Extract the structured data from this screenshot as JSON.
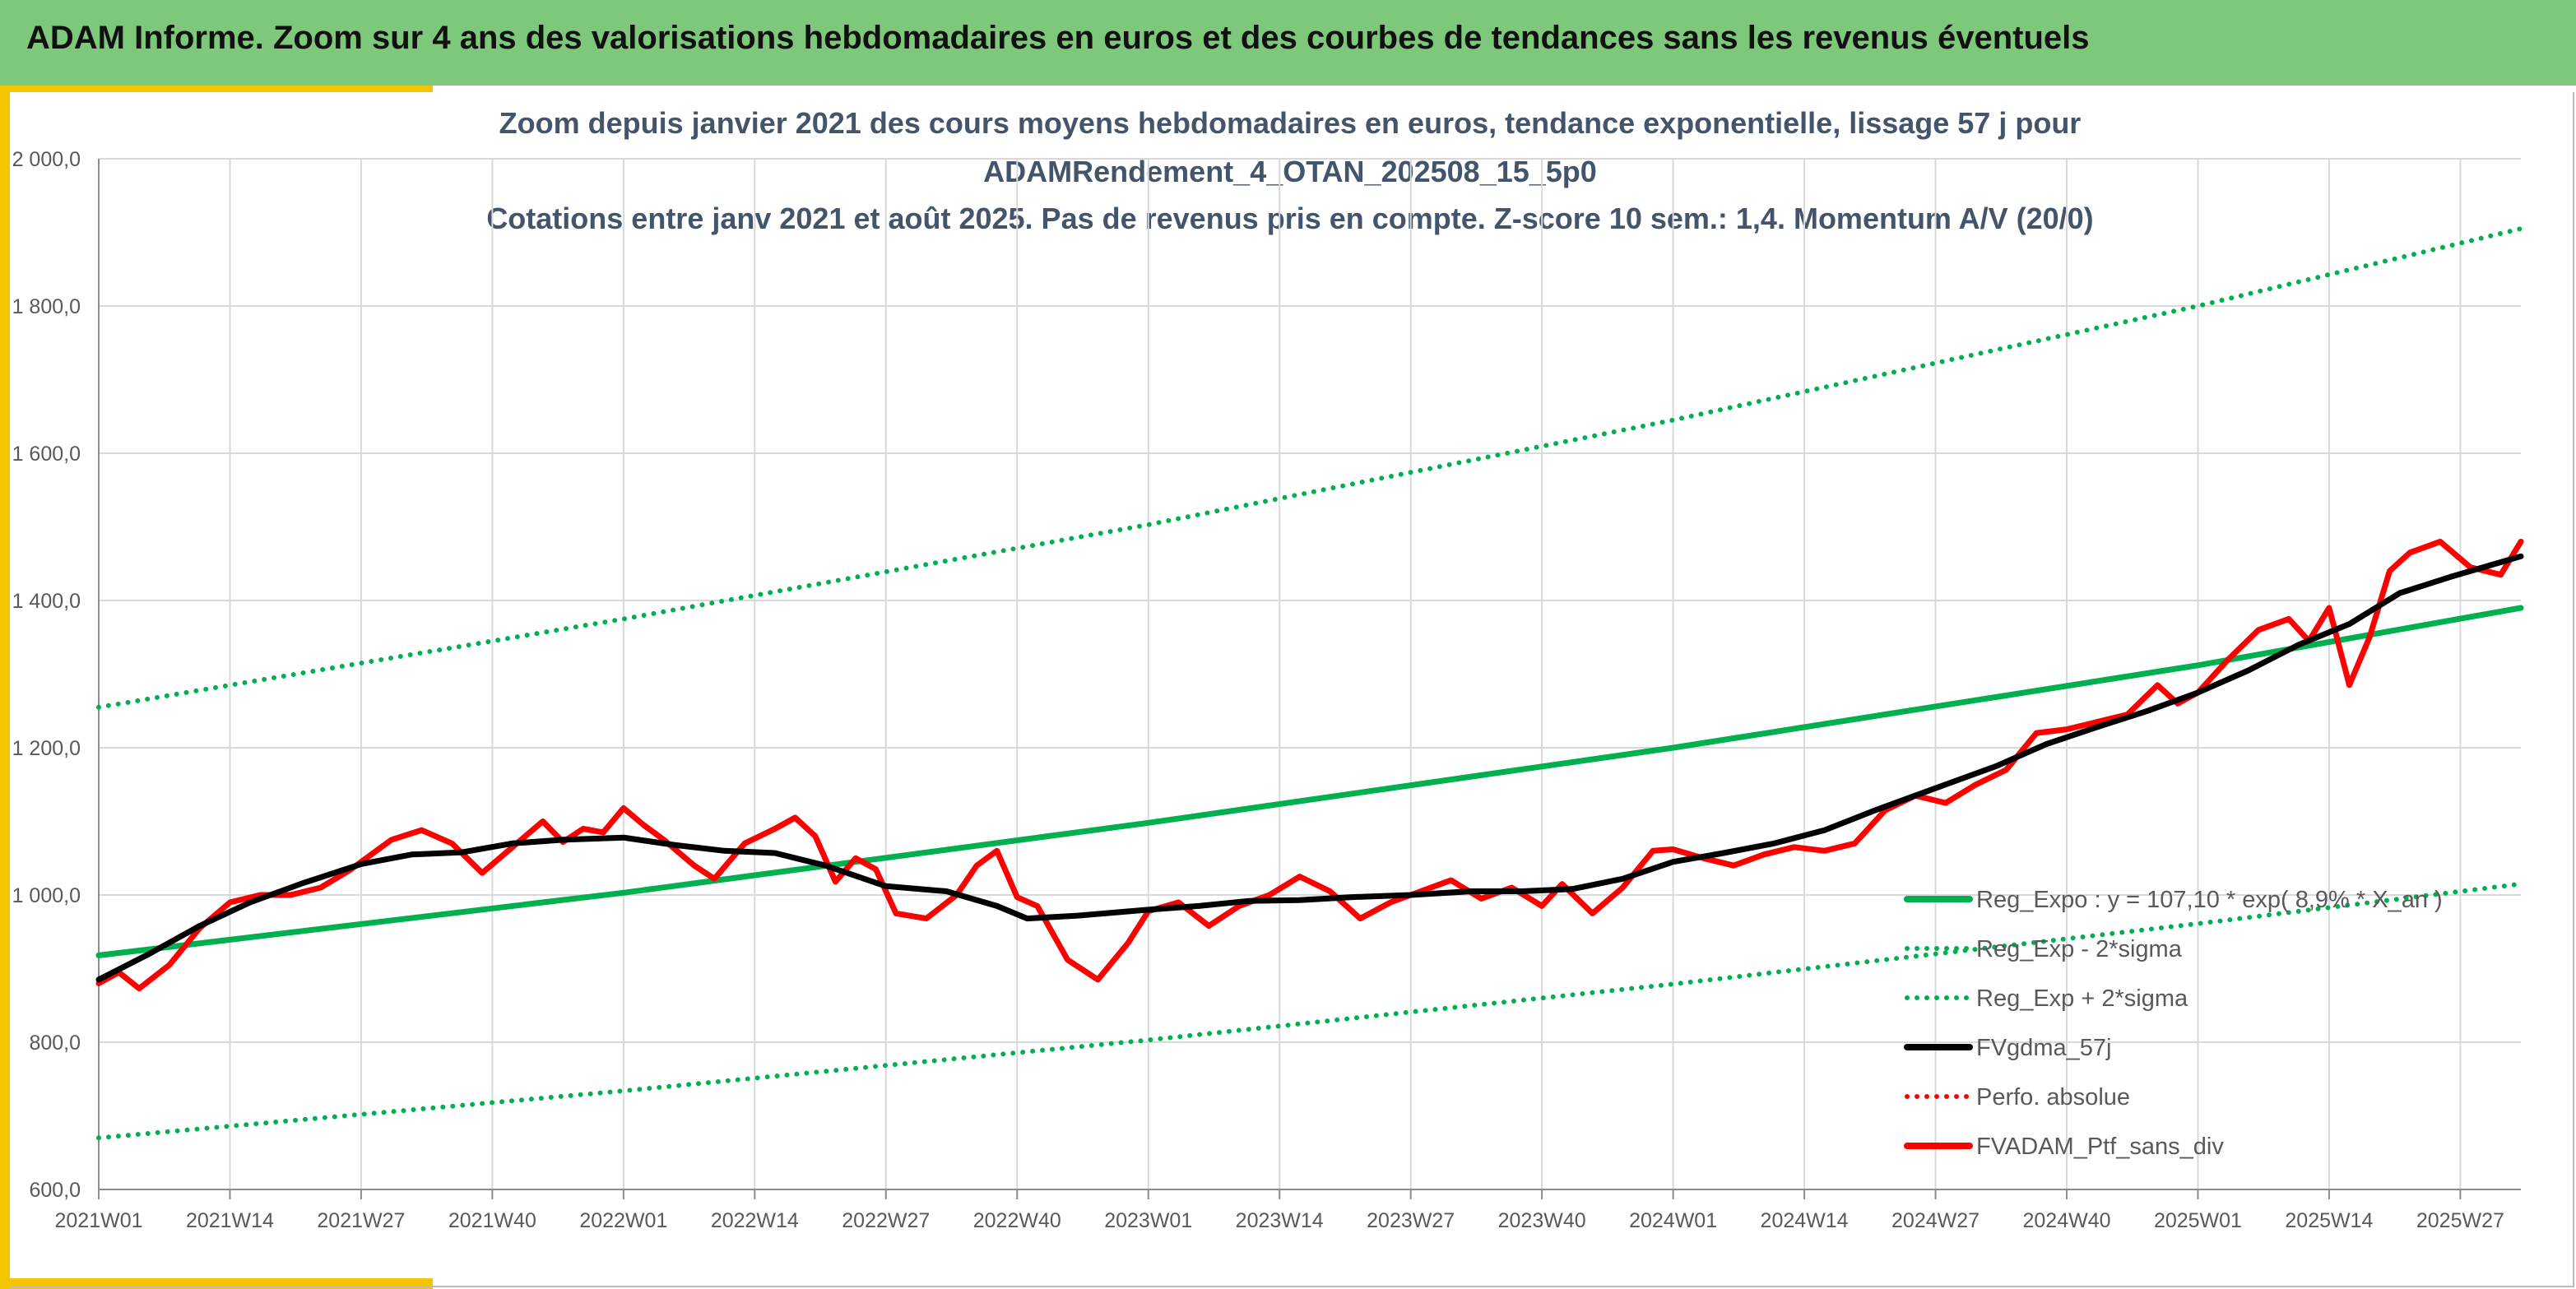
{
  "banner": {
    "title": "ADAM Informe. Zoom sur 4 ans des valorisations hebdomadaires en euros et des courbes de tendances sans les revenus éventuels"
  },
  "colors": {
    "banner": "#7dc87a",
    "accent": "#f4c400",
    "reg_expo": "#00b050",
    "mma": "#000000",
    "portfolio": "#ff0000"
  },
  "chart_data": {
    "type": "line",
    "title_lines": [
      "Zoom depuis janvier 2021 des cours moyens hebdomadaires en euros, tendance exponentielle, lissage 57 j pour",
      "ADAMRendement_4_OTAN_202508_15_5p0",
      "Cotations entre janv 2021 et août 2025. Pas de revenus pris en compte. Z-score 10 sem.: 1,4. Momentum A/V (20/0)"
    ],
    "xlabel": "",
    "ylabel": "",
    "ylim": [
      600,
      2000
    ],
    "yticks": [
      "2 000,0",
      "1 800,0",
      "1 600,0",
      "1 400,0",
      "1 200,0",
      "1 000,0",
      "800,0",
      "600,0"
    ],
    "xticks": [
      "2021W01",
      "2021W14",
      "2021W27",
      "2021W40",
      "2022W01",
      "2022W14",
      "2022W27",
      "2022W40",
      "2023W01",
      "2023W14",
      "2023W27",
      "2023W40",
      "2024W01",
      "2024W14",
      "2024W27",
      "2024W40",
      "2025W01",
      "2025W14",
      "2025W27"
    ],
    "grid": true,
    "legend_position": "right",
    "series": [
      {
        "name": "Reg_Expo : y = 107,10 * exp( 8,9% * X_an )",
        "style": "solid",
        "color": "#00b050",
        "x": [
          "2021W01",
          "2022W01",
          "2023W01",
          "2024W01",
          "2025W01",
          "2025W33"
        ],
        "values": [
          918,
          1003,
          1098,
          1200,
          1312,
          1390
        ]
      },
      {
        "name": "Reg_Exp - 2*sigma",
        "style": "dotted",
        "color": "#00b050",
        "x": [
          "2021W01",
          "2022W01",
          "2023W01",
          "2024W01",
          "2025W01",
          "2025W33"
        ],
        "values": [
          670,
          734,
          803,
          879,
          961,
          1015
        ]
      },
      {
        "name": "Reg_Exp + 2*sigma",
        "style": "dotted",
        "color": "#00b050",
        "x": [
          "2021W01",
          "2022W01",
          "2023W01",
          "2024W01",
          "2025W01",
          "2025W33"
        ],
        "values": [
          1255,
          1375,
          1503,
          1645,
          1800,
          1905
        ]
      },
      {
        "name": "FVgdma_57j",
        "style": "solid",
        "color": "#000000",
        "x": [
          "2021W01",
          "2021W06",
          "2021W11",
          "2021W16",
          "2021W21",
          "2021W27",
          "2021W32",
          "2021W37",
          "2021W42",
          "2021W47",
          "2022W01",
          "2022W06",
          "2022W11",
          "2022W16",
          "2022W21",
          "2022W27",
          "2022W33",
          "2022W38",
          "2022W41",
          "2022W46",
          "2023W01",
          "2023W06",
          "2023W11",
          "2023W16",
          "2023W21",
          "2023W27",
          "2023W33",
          "2023W38",
          "2023W43",
          "2023W48",
          "2024W01",
          "2024W06",
          "2024W11",
          "2024W16",
          "2024W21",
          "2024W27",
          "2024W33",
          "2024W38",
          "2024W43",
          "2024W48",
          "2025W01",
          "2025W06",
          "2025W11",
          "2025W16",
          "2025W21",
          "2025W26",
          "2025W33"
        ],
        "values": [
          885,
          920,
          958,
          990,
          1015,
          1042,
          1055,
          1058,
          1070,
          1075,
          1078,
          1068,
          1060,
          1057,
          1040,
          1012,
          1005,
          985,
          968,
          972,
          980,
          985,
          992,
          993,
          997,
          1000,
          1005,
          1005,
          1008,
          1022,
          1045,
          1057,
          1070,
          1088,
          1115,
          1145,
          1175,
          1205,
          1228,
          1250,
          1275,
          1305,
          1340,
          1368,
          1410,
          1432,
          1460
        ]
      },
      {
        "name": "Perfo. absolue",
        "style": "dotted",
        "color": "#ff0000",
        "x": [],
        "values": []
      },
      {
        "name": "FVADAM_Ptf_sans_div",
        "style": "solid",
        "color": "#ff0000",
        "x": [
          "2021W01",
          "2021W03",
          "2021W05",
          "2021W08",
          "2021W11",
          "2021W14",
          "2021W17",
          "2021W20",
          "2021W23",
          "2021W26",
          "2021W28",
          "2021W30",
          "2021W33",
          "2021W36",
          "2021W39",
          "2021W42",
          "2021W45",
          "2021W47",
          "2021W49",
          "2021W51",
          "2022W01",
          "2022W03",
          "2022W05",
          "2022W08",
          "2022W10",
          "2022W13",
          "2022W16",
          "2022W18",
          "2022W20",
          "2022W22",
          "2022W24",
          "2022W26",
          "2022W28",
          "2022W31",
          "2022W34",
          "2022W36",
          "2022W38",
          "2022W40",
          "2022W42",
          "2022W45",
          "2022W48",
          "2022W51",
          "2023W01",
          "2023W04",
          "2023W07",
          "2023W10",
          "2023W13",
          "2023W16",
          "2023W19",
          "2023W22",
          "2023W25",
          "2023W28",
          "2023W31",
          "2023W34",
          "2023W37",
          "2023W40",
          "2023W42",
          "2023W45",
          "2023W48",
          "2023W51",
          "2024W01",
          "2024W04",
          "2024W07",
          "2024W10",
          "2024W13",
          "2024W16",
          "2024W19",
          "2024W22",
          "2024W25",
          "2024W28",
          "2024W31",
          "2024W34",
          "2024W37",
          "2024W40",
          "2024W43",
          "2024W46",
          "2024W49",
          "2024W51",
          "2025W01",
          "2025W04",
          "2025W07",
          "2025W10",
          "2025W12",
          "2025W14",
          "2025W16",
          "2025W18",
          "2025W20",
          "2025W22",
          "2025W25",
          "2025W28",
          "2025W31",
          "2025W33"
        ],
        "values": [
          880,
          895,
          873,
          905,
          955,
          990,
          1000,
          1000,
          1010,
          1035,
          1055,
          1075,
          1088,
          1070,
          1030,
          1065,
          1100,
          1072,
          1090,
          1085,
          1118,
          1095,
          1075,
          1040,
          1022,
          1070,
          1090,
          1105,
          1080,
          1018,
          1050,
          1035,
          975,
          968,
          1000,
          1040,
          1060,
          997,
          985,
          912,
          885,
          935,
          978,
          990,
          958,
          985,
          1000,
          1025,
          1005,
          968,
          990,
          1005,
          1020,
          995,
          1010,
          985,
          1015,
          975,
          1010,
          1060,
          1062,
          1050,
          1040,
          1055,
          1065,
          1060,
          1070,
          1115,
          1135,
          1125,
          1150,
          1170,
          1220,
          1225,
          1235,
          1245,
          1285,
          1260,
          1275,
          1320,
          1360,
          1375,
          1345,
          1390,
          1285,
          1350,
          1440,
          1465,
          1480,
          1445,
          1435,
          1480
        ]
      }
    ]
  }
}
